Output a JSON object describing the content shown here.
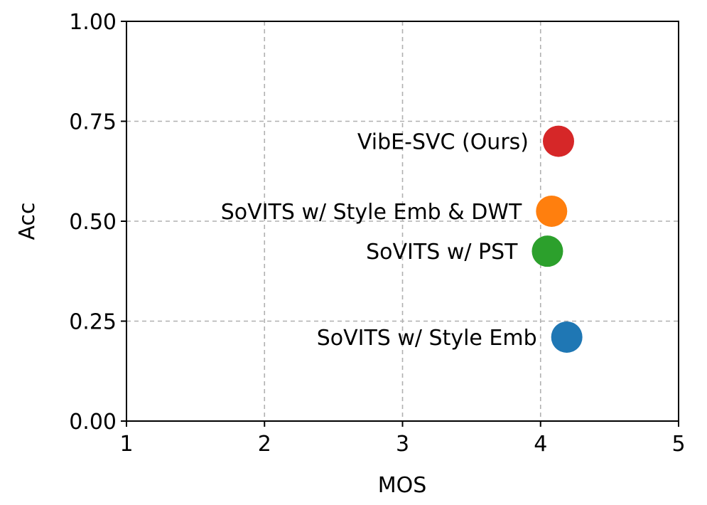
{
  "chart_data": {
    "type": "scatter",
    "xlabel": "MOS",
    "ylabel": "Acc",
    "xlim": [
      1,
      5
    ],
    "ylim": [
      0,
      1
    ],
    "xticks": [
      "1",
      "2",
      "3",
      "4",
      "5"
    ],
    "yticks": [
      "0.00",
      "0.25",
      "0.50",
      "0.75",
      "1.00"
    ],
    "grid": true,
    "points": [
      {
        "label": "VibE-SVC (Ours)",
        "x": 4.13,
        "y": 0.7,
        "color": "#d62728"
      },
      {
        "label": "SoVITS w/ Style Emb & DWT",
        "x": 4.08,
        "y": 0.525,
        "color": "#ff7f0e"
      },
      {
        "label": "SoVITS w/ PST",
        "x": 4.05,
        "y": 0.425,
        "color": "#2ca02c"
      },
      {
        "label": "SoVITS w/ Style Emb",
        "x": 4.19,
        "y": 0.21,
        "color": "#1f77b4"
      }
    ]
  }
}
